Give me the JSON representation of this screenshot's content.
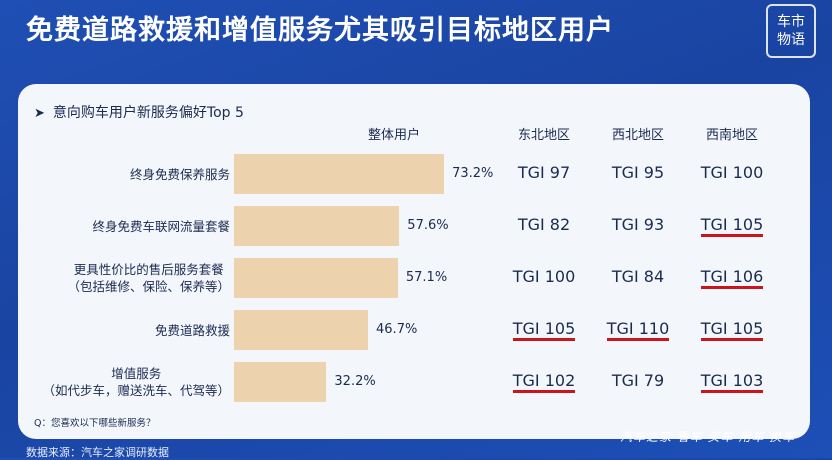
{
  "header": {
    "title": "免费道路救援和增值服务尤其吸引目标地区用户"
  },
  "logo": {
    "line1": "车市",
    "line2": "物语"
  },
  "question": "Q：您喜欢以下哪些新服务？",
  "source": "数据来源：汽车之家调研数据",
  "watermark": "汽车之家 看车 买车 用车 换车",
  "colors": {
    "bar": "#ecd3ad",
    "highlight_underline": "#c9151b",
    "background": "#1f4fb4",
    "panel": "#f3f6fb"
  },
  "chart_data": {
    "type": "bar",
    "orientation": "horizontal",
    "title": "意向购车用户新服务偏好Top 5",
    "series_label": "整体用户",
    "categories": [
      [
        "终身免费保养服务"
      ],
      [
        "终身免费车联网流量套餐"
      ],
      [
        "更具性价比的售后服务套餐",
        "（包括维修、保险、保养等）"
      ],
      [
        "免费道路救援"
      ],
      [
        "增值服务",
        "（如代步车，赠送洗车、代驾等）"
      ]
    ],
    "values": [
      73.2,
      57.6,
      57.1,
      46.7,
      32.2
    ],
    "value_labels": [
      "73.2%",
      "57.6%",
      "57.1%",
      "46.7%",
      "32.2%"
    ],
    "xlim": [
      0,
      100
    ],
    "tgi_table": {
      "columns": [
        "东北地区",
        "西北地区",
        "西南地区"
      ],
      "rows": [
        [
          "TGI 97",
          "TGI 95",
          "TGI 100"
        ],
        [
          "TGI 82",
          "TGI 93",
          "TGI 105"
        ],
        [
          "TGI 100",
          "TGI 84",
          "TGI 106"
        ],
        [
          "TGI 105",
          "TGI 110",
          "TGI 105"
        ],
        [
          "TGI 102",
          "TGI 79",
          "TGI 103"
        ]
      ],
      "highlighted": [
        [
          false,
          false,
          false
        ],
        [
          false,
          false,
          true
        ],
        [
          false,
          false,
          true
        ],
        [
          true,
          true,
          true
        ],
        [
          true,
          false,
          true
        ]
      ]
    }
  }
}
